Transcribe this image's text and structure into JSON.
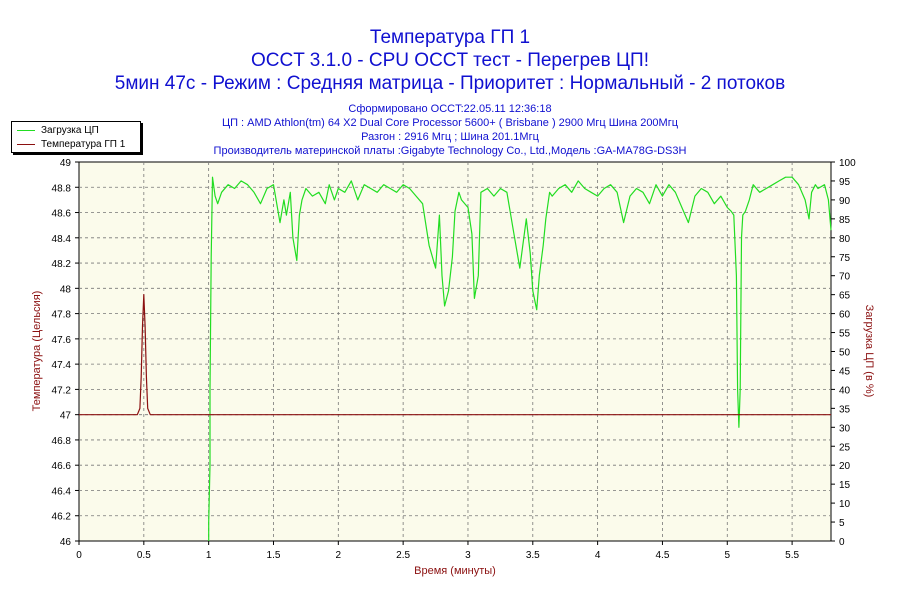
{
  "titles": {
    "line1": "Температура ГП 1",
    "line2": "OCCT 3.1.0 - CPU OCCT тест - Перегрев ЦП!",
    "line3": "5мин 47с - Режим : Средняя матрица - Приоритет : Нормальный - 2 потоков"
  },
  "info": {
    "line1": "Сформировано OCCT:22.05.11 12:36:18",
    "line2": "ЦП : AMD Athlon(tm) 64 X2 Dual Core Processor 5600+ ( Brisbane ) 2900 Мгц Шина 200Мгц",
    "line3": "Разгон : 2916 Мгц ; Шина 201.1Мгц",
    "line4": "Производитель материнской платы :Gigabyte Technology Co., Ltd.,Модель :GA-MA78G-DS3H"
  },
  "legend": {
    "series1": "Загрузка ЦП",
    "series2": "Температура ГП 1"
  },
  "colors": {
    "cpu_load": "#22dd22",
    "gpu_temp": "#8b1010",
    "plot_bg": "#fbfbeb",
    "grid": "#777777",
    "title": "#1010d0"
  },
  "chart_data": {
    "type": "line",
    "xlabel": "Время (минуты)",
    "ylabel_left": "Температура (Цельсия)",
    "ylabel_right": "Загрузка ЦП (в %)",
    "xlim": [
      0,
      5.8
    ],
    "ylim_left": [
      46,
      49
    ],
    "ylim_right": [
      0,
      100
    ],
    "x_ticks": [
      "0",
      "0.5",
      "1",
      "1.5",
      "2",
      "2.5",
      "3",
      "3.5",
      "4",
      "4.5",
      "5",
      "5.5"
    ],
    "y_ticks_left": [
      "46",
      "46.2",
      "46.4",
      "46.6",
      "46.8",
      "47",
      "47.2",
      "47.4",
      "47.6",
      "47.8",
      "48",
      "48.2",
      "48.4",
      "48.6",
      "48.8",
      "49"
    ],
    "y_ticks_right": [
      "0",
      "5",
      "10",
      "15",
      "20",
      "25",
      "30",
      "35",
      "40",
      "45",
      "50",
      "55",
      "60",
      "65",
      "70",
      "75",
      "80",
      "85",
      "90",
      "95",
      "100"
    ],
    "grid": true,
    "legend_position": "top-left",
    "series": [
      {
        "name": "Загрузка ЦП",
        "axis": "right",
        "x": [
          1.0,
          1.0,
          1.01,
          1.01,
          1.02,
          1.03,
          1.05,
          1.07,
          1.1,
          1.15,
          1.2,
          1.25,
          1.3,
          1.35,
          1.4,
          1.45,
          1.5,
          1.53,
          1.55,
          1.58,
          1.6,
          1.63,
          1.65,
          1.68,
          1.7,
          1.72,
          1.75,
          1.8,
          1.85,
          1.9,
          1.93,
          1.95,
          1.97,
          2.0,
          2.05,
          2.1,
          2.15,
          2.2,
          2.25,
          2.3,
          2.35,
          2.4,
          2.45,
          2.5,
          2.55,
          2.6,
          2.65,
          2.7,
          2.75,
          2.78,
          2.8,
          2.82,
          2.85,
          2.88,
          2.9,
          2.93,
          2.95,
          3.0,
          3.03,
          3.05,
          3.08,
          3.1,
          3.15,
          3.2,
          3.25,
          3.3,
          3.35,
          3.4,
          3.45,
          3.48,
          3.5,
          3.53,
          3.55,
          3.58,
          3.6,
          3.63,
          3.65,
          3.7,
          3.75,
          3.8,
          3.85,
          3.9,
          3.95,
          4.0,
          4.05,
          4.1,
          4.15,
          4.2,
          4.25,
          4.3,
          4.35,
          4.4,
          4.45,
          4.5,
          4.55,
          4.6,
          4.65,
          4.7,
          4.75,
          4.8,
          4.85,
          4.9,
          4.95,
          5.0,
          5.03,
          5.05,
          5.07,
          5.08,
          5.09,
          5.1,
          5.11,
          5.12,
          5.14,
          5.17,
          5.2,
          5.25,
          5.3,
          5.35,
          5.4,
          5.45,
          5.5,
          5.55,
          5.6,
          5.63,
          5.65,
          5.68,
          5.7,
          5.75,
          5.78,
          5.8
        ],
        "values": [
          0,
          5,
          20,
          40,
          75,
          96,
          91,
          89,
          92,
          94,
          93,
          95,
          94,
          92,
          89,
          93,
          94,
          88,
          84,
          90,
          86,
          92,
          80,
          74,
          86,
          90,
          93,
          91,
          92,
          89,
          94,
          92,
          90,
          93,
          92,
          95,
          90,
          94,
          93,
          92,
          94,
          93,
          92,
          94,
          93,
          91,
          89,
          78,
          72,
          86,
          70,
          62,
          66,
          75,
          87,
          92,
          90,
          88,
          81,
          64,
          70,
          92,
          93,
          91,
          93,
          92,
          82,
          72,
          85,
          76,
          66,
          61,
          70,
          78,
          85,
          92,
          91,
          93,
          94,
          92,
          95,
          93,
          92,
          91,
          93,
          94,
          92,
          84,
          91,
          93,
          92,
          89,
          94,
          91,
          94,
          92,
          88,
          84,
          91,
          93,
          92,
          89,
          91,
          88,
          87,
          86,
          70,
          40,
          30,
          40,
          80,
          86,
          87,
          90,
          94,
          92,
          93,
          94,
          95,
          96,
          96,
          94,
          90,
          85,
          92,
          94,
          93,
          94,
          90,
          82
        ]
      },
      {
        "name": "Температура ГП 1",
        "axis": "left",
        "x": [
          0,
          0.45,
          0.47,
          0.48,
          0.49,
          0.5,
          0.51,
          0.52,
          0.53,
          0.55,
          5.8
        ],
        "values": [
          47,
          47,
          47.05,
          47.3,
          47.7,
          47.95,
          47.7,
          47.3,
          47.05,
          47,
          47
        ]
      }
    ]
  }
}
